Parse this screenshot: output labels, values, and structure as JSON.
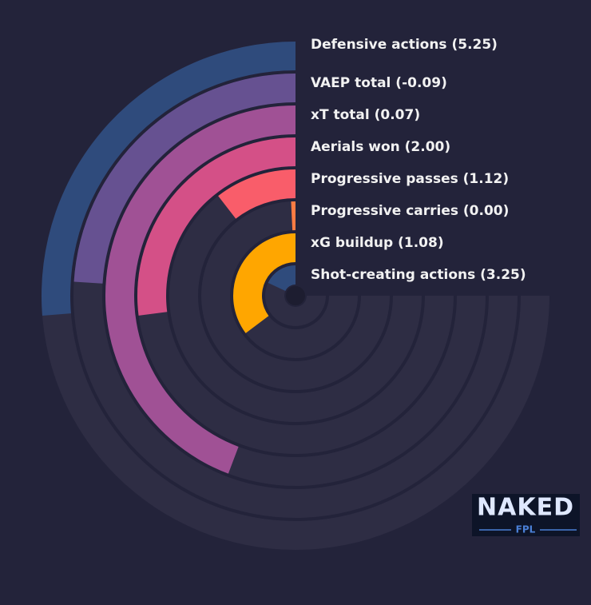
{
  "chart_data": {
    "type": "radial-bar",
    "categories": [
      "Defensive actions (5.25)",
      "VAEP total (-0.09)",
      "xT total (0.07)",
      "Aerials won (2.00)",
      "Progressive passes (1.12)",
      "Progressive carries (0.00)",
      "xG buildup (1.08)",
      "Shot-creating actions (3.25)"
    ],
    "values": [
      35,
      32,
      59,
      36,
      14,
      1,
      47,
      24
    ],
    "colors": [
      "#2f4b7c",
      "#665191",
      "#a05195",
      "#d45087",
      "#f95d6a",
      "#ff7c43",
      "#ffa600",
      "#2f4b7c"
    ],
    "xlim": [
      0,
      100
    ]
  },
  "logo": {
    "title": "NAKED",
    "subtitle": "FPL"
  }
}
